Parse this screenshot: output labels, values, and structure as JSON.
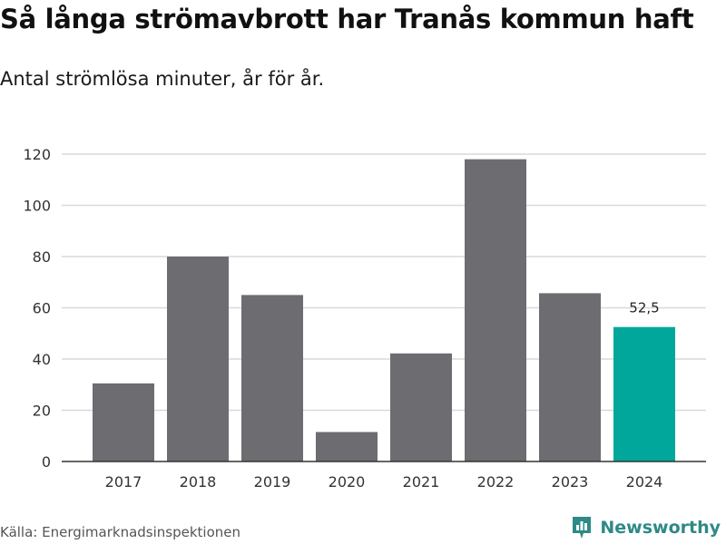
{
  "header": {
    "title": "Så långa strömavbrott har Tranås kommun haft",
    "subtitle": "Antal strömlösa minuter, år för år."
  },
  "footer": {
    "source": "Källa: Energimarknadsinspektionen",
    "brand": "Newsworthy"
  },
  "colors": {
    "bar_default": "#6d6c71",
    "bar_highlight": "#00a79a",
    "grid": "#d9d9d9",
    "axis": "#333333",
    "brand": "#2e8a86"
  },
  "chart_data": {
    "type": "bar",
    "title": "Så långa strömavbrott har Tranås kommun haft",
    "subtitle": "Antal strömlösa minuter, år för år.",
    "xlabel": "",
    "ylabel": "",
    "categories": [
      "2017",
      "2018",
      "2019",
      "2020",
      "2021",
      "2022",
      "2023",
      "2024"
    ],
    "values": [
      30.5,
      80,
      65,
      11.5,
      42.2,
      118,
      65.7,
      52.5
    ],
    "highlight_index": 7,
    "data_labels": [
      {
        "index": 7,
        "text": "52,5"
      }
    ],
    "ylim": [
      0,
      120
    ],
    "yticks": [
      0,
      20,
      40,
      60,
      80,
      100,
      120
    ],
    "grid": true,
    "legend": "none"
  }
}
